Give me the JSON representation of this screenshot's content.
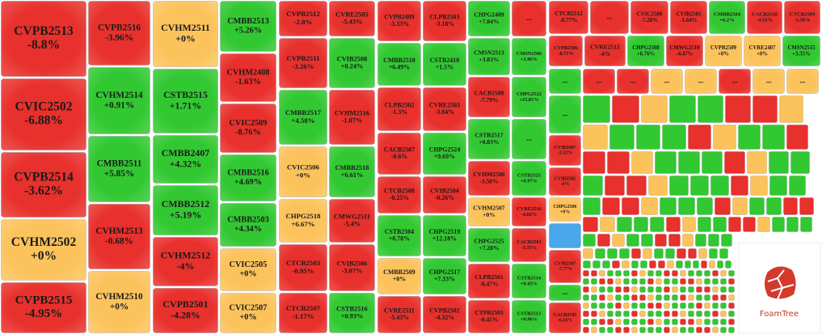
{
  "chart_data": {
    "type": "treemap",
    "logo": "FoamTree",
    "tiles": [
      {
        "name": "CVPB2513",
        "value": -8.8,
        "value_label": "-8.8%",
        "color": "#e8302c"
      },
      {
        "name": "CVIC2502",
        "value": -6.88,
        "value_label": "-6.88%",
        "color": "#e8302c"
      },
      {
        "name": "CVPB2514",
        "value": -3.62,
        "value_label": "-3.62%",
        "color": "#e8302c"
      },
      {
        "name": "CVHM2502",
        "value": 0,
        "value_label": "+0%",
        "color": "#fcc35c"
      },
      {
        "name": "CVPB2515",
        "value": -4.95,
        "value_label": "-4.95%",
        "color": "#e8302c"
      },
      {
        "name": "CVPB2516",
        "value": -3.96,
        "value_label": "-3.96%",
        "color": "#e8302c"
      },
      {
        "name": "CVHM2514",
        "value": 0.91,
        "value_label": "+0.91%",
        "color": "#32c832"
      },
      {
        "name": "CMBB2511",
        "value": 5.85,
        "value_label": "+5.85%",
        "color": "#32c832"
      },
      {
        "name": "CVHM2513",
        "value": -0.68,
        "value_label": "-0.68%",
        "color": "#e8302c"
      },
      {
        "name": "CVHM2510",
        "value": 0,
        "value_label": "+0%",
        "color": "#fcc35c"
      },
      {
        "name": "CVHM2511",
        "value": 0,
        "value_label": "+0%",
        "color": "#fcc35c"
      },
      {
        "name": "CSTB2515",
        "value": 1.71,
        "value_label": "+1.71%",
        "color": "#32c832"
      },
      {
        "name": "CMBB2407",
        "value": 4.32,
        "value_label": "+4.32%",
        "color": "#32c832"
      },
      {
        "name": "CMBB2512",
        "value": 5.19,
        "value_label": "+5.19%",
        "color": "#32c832"
      },
      {
        "name": "CVHM2512",
        "value": -4,
        "value_label": "-4%",
        "color": "#e8302c"
      },
      {
        "name": "CVPB2501",
        "value": -4.28,
        "value_label": "-4.28%",
        "color": "#e8302c"
      },
      {
        "name": "CMBB2513",
        "value": 5.26,
        "value_label": "+5.26%",
        "color": "#32c832"
      },
      {
        "name": "CVHM2408",
        "value": -1.63,
        "value_label": "-1.63%",
        "color": "#e8302c"
      },
      {
        "name": "CVIC2509",
        "value": -8.76,
        "value_label": "-8.76%",
        "color": "#e8302c"
      },
      {
        "name": "CMBB2516",
        "value": 4.69,
        "value_label": "+4.69%",
        "color": "#32c832"
      },
      {
        "name": "CMBB2503",
        "value": 4.34,
        "value_label": "+4.34%",
        "color": "#32c832"
      },
      {
        "name": "CVIC2505",
        "value": 0,
        "value_label": "+0%",
        "color": "#fcc35c"
      },
      {
        "name": "CVIC2507",
        "value": 0,
        "value_label": "+0%",
        "color": "#fcc35c"
      },
      {
        "name": "CVPB2512",
        "value": -2.8,
        "value_label": "-2.8%",
        "color": "#e8302c"
      },
      {
        "name": "CVRE2505",
        "value": -5.43,
        "value_label": "-5.43%",
        "color": "#e8302c"
      },
      {
        "name": "CVPB2511",
        "value": -3.26,
        "value_label": "-3.26%",
        "color": "#e8302c"
      },
      {
        "name": "CVIB2508",
        "value": 0.24,
        "value_label": "+0.24%",
        "color": "#32c832"
      },
      {
        "name": "CMBB2517",
        "value": 4.58,
        "value_label": "+4.58%",
        "color": "#32c832"
      },
      {
        "name": "CVHM2516",
        "value": -1.07,
        "value_label": "-1.07%",
        "color": "#e8302c"
      },
      {
        "name": "CVIC2506",
        "value": 0,
        "value_label": "+0%",
        "color": "#fcc35c"
      },
      {
        "name": "CMBB2518",
        "value": 6.61,
        "value_label": "+6.61%",
        "color": "#32c832"
      },
      {
        "name": "CHPG2518",
        "value": 6.67,
        "value_label": "+6.67%",
        "color": "#fcc35c"
      },
      {
        "name": "CMWG2511",
        "value": -5.4,
        "value_label": "-5.4%",
        "color": "#e8302c"
      },
      {
        "name": "CTCB2503",
        "value": -0.95,
        "value_label": "-0.95%",
        "color": "#e8302c"
      },
      {
        "name": "CVIB2506",
        "value": -3.07,
        "value_label": "-3.07%",
        "color": "#e8302c"
      },
      {
        "name": "CTCB2507",
        "value": -1.17,
        "value_label": "-1.17%",
        "color": "#e8302c"
      },
      {
        "name": "CSTB2516",
        "value": 0.93,
        "value_label": "+0.93%",
        "color": "#32c832"
      },
      {
        "name": "CVPB2409",
        "value": -3.33,
        "value_label": "-3.33%",
        "color": "#e8302c"
      },
      {
        "name": "CLPB2503",
        "value": -3.18,
        "value_label": "-3.18%",
        "color": "#e8302c"
      },
      {
        "name": "CMBB2510",
        "value": 6.49,
        "value_label": "+6.49%",
        "color": "#32c832"
      },
      {
        "name": "CSTB2410",
        "value": 1.5,
        "value_label": "+1.5%",
        "color": "#32c832"
      },
      {
        "name": "CLPB2502",
        "value": -1.3,
        "value_label": "-1.3%",
        "color": "#e8302c"
      },
      {
        "name": "CVRE2503",
        "value": -3.04,
        "value_label": "-3.04%",
        "color": "#e8302c"
      },
      {
        "name": "CACB2507",
        "value": -0.6,
        "value_label": "-0.6%",
        "color": "#e8302c"
      },
      {
        "name": "CHPG2524",
        "value": 9.69,
        "value_label": "+9.69%",
        "color": "#32c832"
      },
      {
        "name": "CTCB2508",
        "value": -0.25,
        "value_label": "-0.25%",
        "color": "#e8302c"
      },
      {
        "name": "CVIB2504",
        "value": -0.26,
        "value_label": "-0.26%",
        "color": "#e8302c"
      },
      {
        "name": "CSTB2504",
        "value": 0.78,
        "value_label": "+0.78%",
        "color": "#32c832"
      },
      {
        "name": "CHPG2519",
        "value": 12.18,
        "value_label": "+12.18%",
        "color": "#32c832"
      },
      {
        "name": "CMBB2509",
        "value": 0,
        "value_label": "+0%",
        "color": "#fcc35c"
      },
      {
        "name": "CHPG2517",
        "value": 7.33,
        "value_label": "+7.33%",
        "color": "#32c832"
      },
      {
        "name": "CVRE2511",
        "value": -5.43,
        "value_label": "-5.43%",
        "color": "#e8302c"
      },
      {
        "name": "CVPB2502",
        "value": -4.32,
        "value_label": "-4.32%",
        "color": "#e8302c"
      },
      {
        "name": "CHPG2409",
        "value": 7.84,
        "value_label": "+7.84%",
        "color": "#32c832"
      },
      {
        "name": "...",
        "color": "#e8302c"
      },
      {
        "name": "CMSN2513",
        "value": 3.83,
        "value_label": "+3.83%",
        "color": "#32c832"
      },
      {
        "name": "CMSN2506",
        "value": 1.06,
        "value_label": "+1.06%",
        "color": "#32c832"
      },
      {
        "name": "CACB2508",
        "value": -7.79,
        "value_label": "-7.79%",
        "color": "#e8302c"
      },
      {
        "name": "CHPG2522",
        "value": 15.85,
        "value_label": "+15.85%",
        "color": "#32c832"
      },
      {
        "name": "CSTB2517",
        "value": 0.83,
        "value_label": "+0.83%",
        "color": "#32c832"
      },
      {
        "name": "...",
        "color": "#32c832"
      },
      {
        "name": "CVHM2506",
        "value": -3.58,
        "value_label": "-3.58%",
        "color": "#e8302c"
      },
      {
        "name": "CSTB2525",
        "value": 0.97,
        "value_label": "+0.97%",
        "color": "#32c832"
      },
      {
        "name": "CVHM2507",
        "value": 0,
        "value_label": "+0%",
        "color": "#fcc35c"
      },
      {
        "name": "CVRE2516",
        "value": -4.82,
        "value_label": "-4.82%",
        "color": "#e8302c"
      },
      {
        "name": "CHPG2525",
        "value": 7.28,
        "value_label": "+7.28%",
        "color": "#32c832"
      },
      {
        "name": "CACB2501",
        "value": -3.35,
        "value_label": "-3.35%",
        "color": "#e8302c"
      },
      {
        "name": "CLPB2501",
        "value": -8.47,
        "value_label": "-8.47%",
        "color": "#e8302c"
      },
      {
        "name": "CSTB2514",
        "value": 0.45,
        "value_label": "+0.45%",
        "color": "#32c832"
      },
      {
        "name": "CTPB2503",
        "value": -0.45,
        "value_label": "-0.45%",
        "color": "#e8302c"
      },
      {
        "name": "CSTB2513",
        "value": 0.96,
        "value_label": "+0.96%",
        "color": "#32c832"
      },
      {
        "name": "CTCB2512",
        "value": -0.77,
        "value_label": "-0.77%",
        "color": "#e8302c"
      },
      {
        "name": "...",
        "color": "#e8302c"
      },
      {
        "name": "CVIC2508",
        "value": -7.28,
        "value_label": "-7.28%",
        "color": "#e8302c"
      },
      {
        "name": "CVIB2505",
        "value": -1.64,
        "value_label": "-1.64%",
        "color": "#e8302c"
      },
      {
        "name": "CMBB2504",
        "value": 6.2,
        "value_label": "+6.2%",
        "color": "#32c832"
      },
      {
        "name": "CACB2518",
        "value": -4.55,
        "value_label": "-4.55%",
        "color": "#e8302c"
      },
      {
        "name": "CTCB2509",
        "value": -3.58,
        "value_label": "-3.58%",
        "color": "#e8302c"
      },
      {
        "name": "CVPB2506",
        "value": -8.75,
        "value_label": "-8.75%",
        "color": "#e8302c"
      },
      {
        "name": "CVRE2512",
        "value": -4,
        "value_label": "-4%",
        "color": "#e8302c"
      },
      {
        "name": "CHPG2508",
        "value": 6.76,
        "value_label": "+6.76%",
        "color": "#32c832"
      },
      {
        "name": "CMWG2510",
        "value": -4.47,
        "value_label": "-4.47%",
        "color": "#e8302c"
      },
      {
        "name": "CVPB2509",
        "value": 0,
        "value_label": "+0%",
        "color": "#fcc35c"
      },
      {
        "name": "CVRE2407",
        "value": 0,
        "value_label": "+0%",
        "color": "#fcc35c"
      },
      {
        "name": "CMSN2515",
        "value": 3.35,
        "value_label": "+3.35%",
        "color": "#32c832"
      },
      {
        "name": "...",
        "color": "#32c832"
      },
      {
        "name": "...",
        "color": "#e8302c"
      },
      {
        "name": "...",
        "color": "#e8302c"
      },
      {
        "name": "...",
        "color": "#fcc35c"
      },
      {
        "name": "...",
        "color": "#fcc35c"
      },
      {
        "name": "...",
        "color": "#e8302c"
      },
      {
        "name": "...",
        "color": "#fcc35c"
      },
      {
        "name": "...",
        "color": "#fcc35c"
      },
      {
        "name": "...",
        "color": "#32c832"
      },
      {
        "name": "CVIB2407",
        "value": -2.23,
        "value_label": "-2.23%",
        "color": "#e8302c"
      },
      {
        "name": "CVIB2502",
        "value": -4,
        "value_label": "-4%",
        "color": "#e8302c"
      },
      {
        "name": "CHPG2506",
        "value": 0,
        "value_label": "+0%",
        "color": "#fcc35c"
      },
      {
        "name": "CVIB2507",
        "value": -7.77,
        "value_label": "-7.77%",
        "color": "#e8302c"
      },
      {
        "name": "...",
        "color": "#32c832"
      },
      {
        "name": "CACB2505",
        "value": -6.16,
        "value_label": "-6.16%",
        "color": "#e8302c"
      }
    ]
  }
}
